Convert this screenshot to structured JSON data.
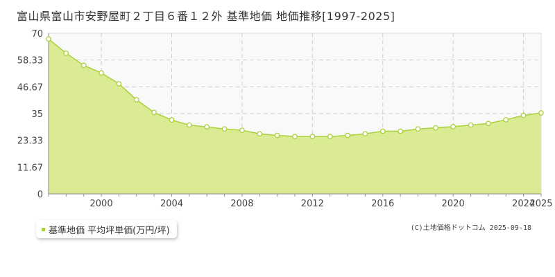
{
  "title": "富山県富山市安野屋町２丁目６番１２外 基準地価 地価推移[1997-2025]",
  "credit": "(C)土地価格ドットコム 2025-09-18",
  "chart_data": {
    "type": "area",
    "title": "富山県富山市安野屋町２丁目６番１２外 基準地価 地価推移[1997-2025]",
    "xlabel": "",
    "ylabel": "",
    "xlim": [
      1997,
      2025
    ],
    "ylim": [
      0,
      70
    ],
    "x_ticks": [
      2000,
      2004,
      2008,
      2012,
      2016,
      2020,
      2024,
      2025
    ],
    "y_ticks": [
      0,
      11.67,
      23.33,
      35,
      46.67,
      58.33,
      70
    ],
    "y_tick_labels": [
      "0",
      "11.67",
      "23.33",
      "35",
      "46.67",
      "58.33",
      "70"
    ],
    "grid": true,
    "legend_position": "bottom-left",
    "series": [
      {
        "name": "基準地価 平均坪単価(万円/坪)",
        "color": "#a8d13c",
        "fill": "#dbeb94",
        "x": [
          1997,
          1998,
          1999,
          2000,
          2001,
          2002,
          2003,
          2004,
          2005,
          2006,
          2007,
          2008,
          2009,
          2010,
          2011,
          2012,
          2013,
          2014,
          2015,
          2016,
          2017,
          2018,
          2019,
          2020,
          2021,
          2022,
          2023,
          2024,
          2025
        ],
        "values": [
          67.5,
          61.3,
          56.0,
          52.7,
          48.0,
          41.0,
          35.5,
          32.2,
          30.0,
          29.2,
          28.3,
          27.7,
          26.2,
          25.5,
          25.0,
          25.0,
          25.0,
          25.5,
          26.2,
          27.3,
          27.3,
          28.3,
          28.8,
          29.3,
          30.0,
          30.7,
          32.3,
          34.2,
          35.3
        ]
      }
    ]
  }
}
